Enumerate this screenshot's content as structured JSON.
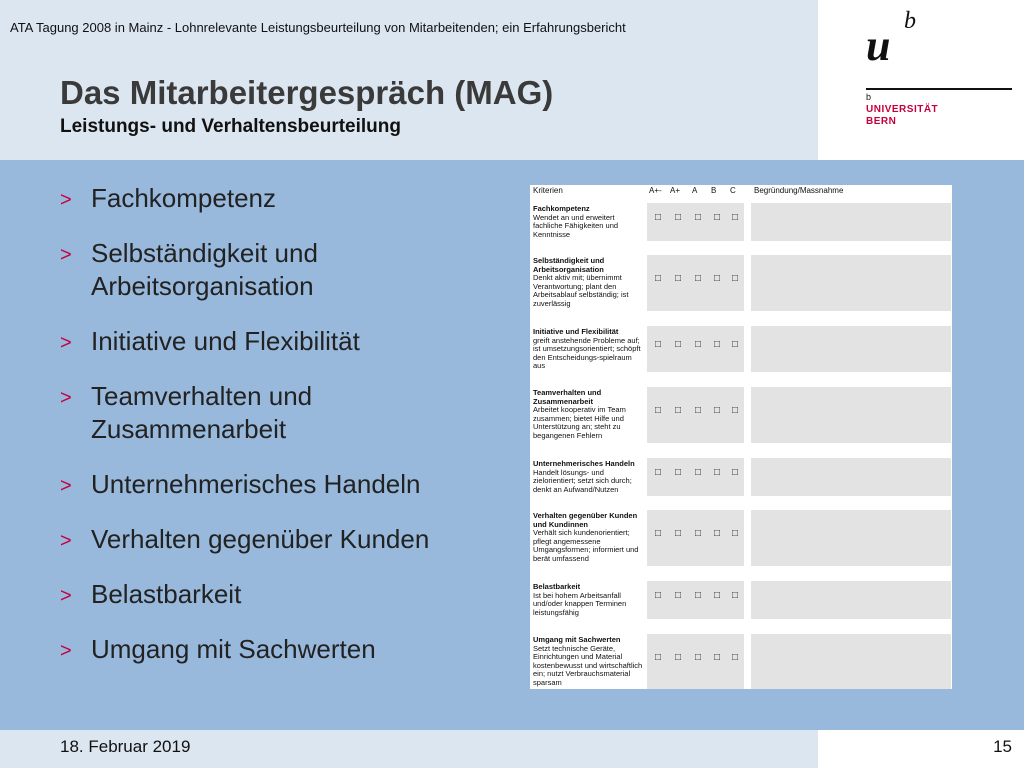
{
  "header": {
    "topline": "ATA Tagung 2008 in Mainz  -  Lohnrelevante Leistungsbeurteilung von Mitarbeitenden; ein Erfahrungsbericht",
    "title": "Das Mitarbeitergespräch (MAG)",
    "subtitle": "Leistungs- und Verhaltensbeurteilung"
  },
  "logo": {
    "u": "u",
    "b": "b",
    "small_b": "b",
    "line1": "UNIVERSITÄT",
    "line2": "BERN"
  },
  "colors": {
    "accent": "#c5003e",
    "header_bg": "#dce6f1",
    "main_bg": "#98b9dc"
  },
  "bullets": [
    {
      "lines": [
        "Fachkompetenz"
      ]
    },
    {
      "lines": [
        "Selbständigkeit und",
        "Arbeitsorganisation"
      ]
    },
    {
      "lines": [
        "Initiative und Flexibilität"
      ]
    },
    {
      "lines": [
        "Teamverhalten und",
        "Zusammenarbeit"
      ]
    },
    {
      "lines": [
        "Unternehmerisches Handeln"
      ]
    },
    {
      "lines": [
        "Verhalten gegenüber Kunden"
      ]
    },
    {
      "lines": [
        "Belastbarkeit"
      ]
    },
    {
      "lines": [
        "Umgang mit Sachwerten"
      ]
    }
  ],
  "bullet_marker": ">",
  "checkbox_glyph": "□",
  "form": {
    "headers": [
      "Kriterien",
      "A+-",
      "A+",
      "A",
      "B",
      "C",
      "Begründung/Massnahme"
    ],
    "rows": [
      {
        "title": "Fachkompetenz",
        "desc": "Wendet an und erweitert fachliche Fähigkeiten und Kenntnisse"
      },
      {
        "title": "Selbständigkeit und Arbeitsorganisation",
        "desc": "Denkt aktiv mit; übernimmt Verantwortung; plant den Arbeitsablauf selbständig; ist zuverlässig"
      },
      {
        "title": "Initiative und Flexibilität",
        "desc": "greift anstehende Probleme auf; ist umsetzungsorientiert; schöpft den Entscheidungs-spielraum aus"
      },
      {
        "title": "Teamverhalten und Zusammenarbeit",
        "desc": "Arbeitet kooperativ im Team zusammen; bietet Hilfe und Unterstützung an; steht zu begangenen Fehlern"
      },
      {
        "title": "Unternehmerisches Handeln",
        "desc": "Handelt lösungs- und zielorientiert; setzt sich durch; denkt an Aufwand/Nutzen"
      },
      {
        "title": "Verhalten gegenüber Kunden und Kundinnen",
        "desc": "Verhält sich kundenorientiert; pflegt angemessene Umgangsformen; informiert und berät umfassend"
      },
      {
        "title": "Belastbarkeit",
        "desc": "Ist bei hohem Arbeitsanfall und/oder knappen Terminen leistungsfähig"
      },
      {
        "title": "Umgang mit Sachwerten",
        "desc": "Setzt technische Geräte, Einrichtungen und Material kostenbewusst und wirtschaftlich ein; nutzt Verbrauchsmaterial sparsam"
      }
    ]
  },
  "footer": {
    "date": "18. Februar 2019",
    "page": "15"
  }
}
